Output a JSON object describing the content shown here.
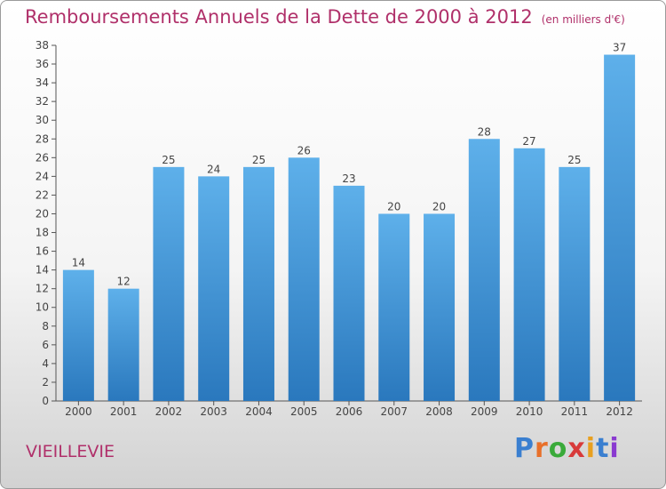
{
  "title": "Remboursements Annuels de la Dette de 2000 à 2012",
  "unit_note": "(en milliers d'€)",
  "commune": "VIEILLEVIE",
  "logo": {
    "text": "Proxiti",
    "letter_colors": [
      "#3a7fd0",
      "#e8702a",
      "#3aaa3a",
      "#d83a3a",
      "#e8a020",
      "#3a7fd0",
      "#8a3ad0"
    ]
  },
  "colors": {
    "bar_top": "#5eb0ea",
    "bar_bottom": "#2a78bd",
    "title": "#b0306a"
  },
  "chart_data": {
    "type": "bar",
    "categories": [
      "2000",
      "2001",
      "2002",
      "2003",
      "2004",
      "2005",
      "2006",
      "2007",
      "2008",
      "2009",
      "2010",
      "2011",
      "2012"
    ],
    "values": [
      14,
      12,
      25,
      24,
      25,
      26,
      23,
      20,
      20,
      28,
      27,
      25,
      37
    ],
    "title": "Remboursements Annuels de la Dette de 2000 à 2012",
    "xlabel": "",
    "ylabel": "",
    "ylim": [
      0,
      38
    ],
    "ytick_step": 2,
    "grid": false,
    "data_labels": true
  }
}
